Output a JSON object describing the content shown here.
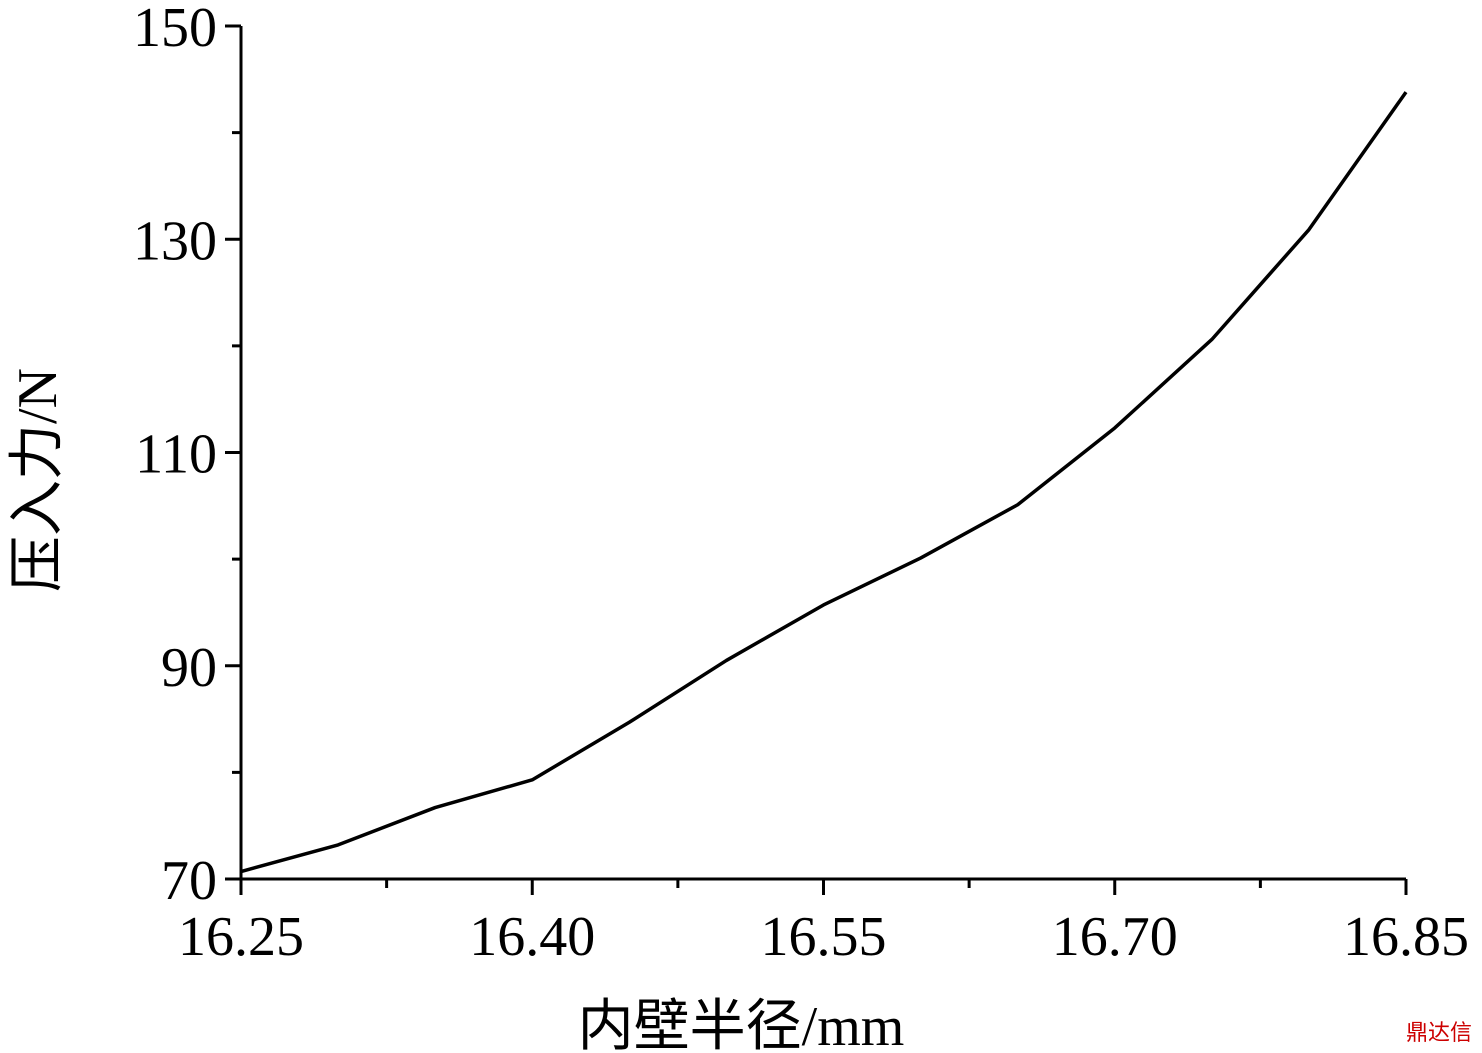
{
  "chart_data": {
    "type": "line",
    "xlabel": "内壁半径/mm",
    "ylabel": "压入力/N",
    "x": [
      16.25,
      16.3,
      16.35,
      16.4,
      16.45,
      16.5,
      16.55,
      16.6,
      16.65,
      16.7,
      16.75,
      16.8,
      16.85
    ],
    "series": [
      {
        "color": "#000000",
        "values": [
          70.7,
          73.2,
          76.7,
          79.3,
          84.7,
          90.5,
          95.7,
          100.1,
          105.1,
          112.3,
          120.6,
          130.9,
          143.8
        ]
      }
    ],
    "xlim": [
      16.25,
      16.85
    ],
    "ylim": [
      70,
      150
    ],
    "xticks": [
      16.25,
      {
        "value": 16.4,
        "label": "16.40"
      },
      16.55,
      {
        "value": 16.7,
        "label": "16.70"
      },
      16.85
    ],
    "xminorticks": [
      16.325,
      16.475,
      16.625,
      16.775
    ],
    "yticks": [
      70,
      90,
      110,
      130,
      150
    ],
    "yminorticks": [
      80,
      100,
      120,
      140
    ],
    "grid": false,
    "watermark": "鼎达信"
  }
}
